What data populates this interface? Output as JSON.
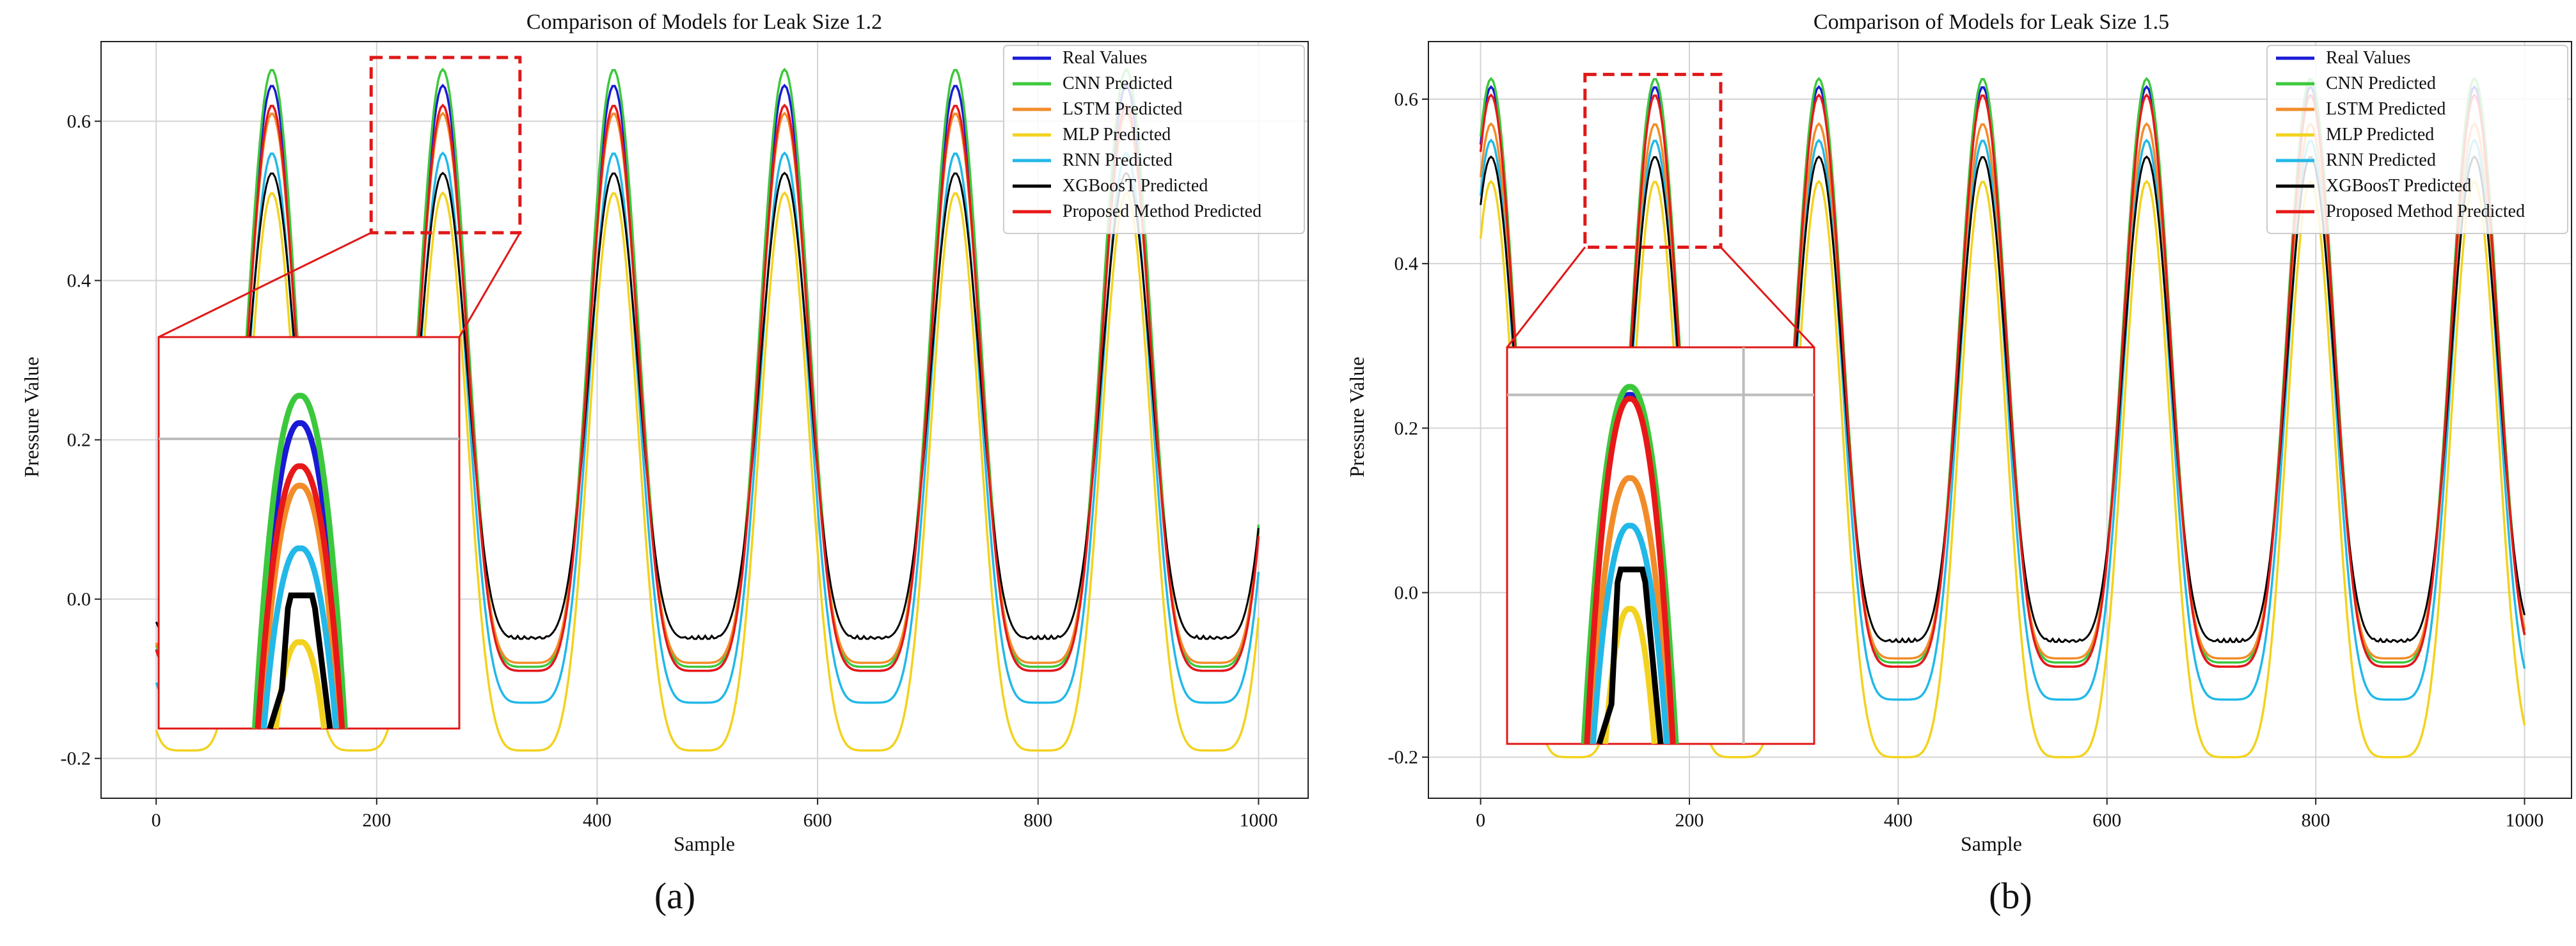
{
  "panels": [
    {
      "panel_label": "(a)",
      "legend": [
        "Real Values",
        "CNN Predicted",
        "LSTM Predicted",
        "MLP Predicted",
        "RNN Predicted",
        "XGBoosT Predicted",
        "Proposed Method Predicted"
      ],
      "chart_data": {
        "type": "line",
        "title": "Comparison of Models for Leak Size 1.2",
        "xlabel": "Sample",
        "ylabel": "Pressure Value",
        "xlim": [
          -50,
          1045
        ],
        "ylim": [
          -0.25,
          0.7
        ],
        "xticks": [
          0,
          200,
          400,
          600,
          800,
          1000
        ],
        "yticks": [
          -0.2,
          0.0,
          0.2,
          0.4,
          0.6
        ],
        "xtick_labels": [
          "0",
          "200",
          "400",
          "600",
          "800",
          "1000"
        ],
        "ytick_labels": [
          "-0.2",
          "0.0",
          "0.2",
          "0.4",
          "0.6"
        ],
        "grid": true,
        "legend_position": "top-right",
        "period": 155,
        "first_peak_x": 105,
        "x_range": [
          0,
          1000
        ],
        "series": [
          {
            "name": "Real Values",
            "color": "#1a1ad6",
            "peak": 0.645,
            "trough": -0.09
          },
          {
            "name": "CNN Predicted",
            "color": "#3cc83c",
            "peak": 0.665,
            "trough": -0.085
          },
          {
            "name": "LSTM Predicted",
            "color": "#f28c28",
            "peak": 0.61,
            "trough": -0.08
          },
          {
            "name": "MLP Predicted",
            "color": "#f2d21e",
            "peak": 0.51,
            "trough": -0.19
          },
          {
            "name": "RNN Predicted",
            "color": "#22b8e8",
            "peak": 0.56,
            "trough": -0.13
          },
          {
            "name": "XGBoosT Predicted",
            "color": "#000000",
            "peak": 0.535,
            "trough": -0.05
          },
          {
            "name": "Proposed Method Predicted",
            "color": "#e81818",
            "peak": 0.62,
            "trough": -0.09
          }
        ],
        "zoom_region": {
          "x": [
            195,
            330
          ],
          "y": [
            0.46,
            0.68
          ]
        }
      }
    },
    {
      "panel_label": "(b)",
      "legend": [
        "Real Values",
        "CNN Predicted",
        "LSTM Predicted",
        "MLP Predicted",
        "RNN Predicted",
        "XGBoosT Predicted",
        "Proposed Method Predicted"
      ],
      "chart_data": {
        "type": "line",
        "title": "Comparison of Models for Leak Size 1.5",
        "xlabel": "Sample",
        "ylabel": "Pressure Value",
        "xlim": [
          -50,
          1045
        ],
        "ylim": [
          -0.25,
          0.67
        ],
        "xticks": [
          0,
          200,
          400,
          600,
          800,
          1000
        ],
        "yticks": [
          -0.2,
          0.0,
          0.2,
          0.4,
          0.6
        ],
        "xtick_labels": [
          "0",
          "200",
          "400",
          "600",
          "800",
          "1000"
        ],
        "ytick_labels": [
          "-0.2",
          "0.0",
          "0.2",
          "0.4",
          "0.6"
        ],
        "grid": true,
        "legend_position": "top-right",
        "period": 157,
        "first_peak_x": 10,
        "x_range": [
          0,
          1000
        ],
        "series": [
          {
            "name": "Real Values",
            "color": "#1a1ad6",
            "peak": 0.615,
            "trough": -0.09
          },
          {
            "name": "CNN Predicted",
            "color": "#3cc83c",
            "peak": 0.625,
            "trough": -0.085
          },
          {
            "name": "LSTM Predicted",
            "color": "#f28c28",
            "peak": 0.57,
            "trough": -0.08
          },
          {
            "name": "MLP Predicted",
            "color": "#f2d21e",
            "peak": 0.5,
            "trough": -0.2
          },
          {
            "name": "RNN Predicted",
            "color": "#22b8e8",
            "peak": 0.55,
            "trough": -0.13
          },
          {
            "name": "XGBoosT Predicted",
            "color": "#000000",
            "peak": 0.53,
            "trough": -0.06
          },
          {
            "name": "Proposed Method Predicted",
            "color": "#e81818",
            "peak": 0.605,
            "trough": -0.09
          }
        ],
        "zoom_region": {
          "x": [
            100,
            230
          ],
          "y": [
            0.42,
            0.63
          ]
        }
      }
    }
  ]
}
